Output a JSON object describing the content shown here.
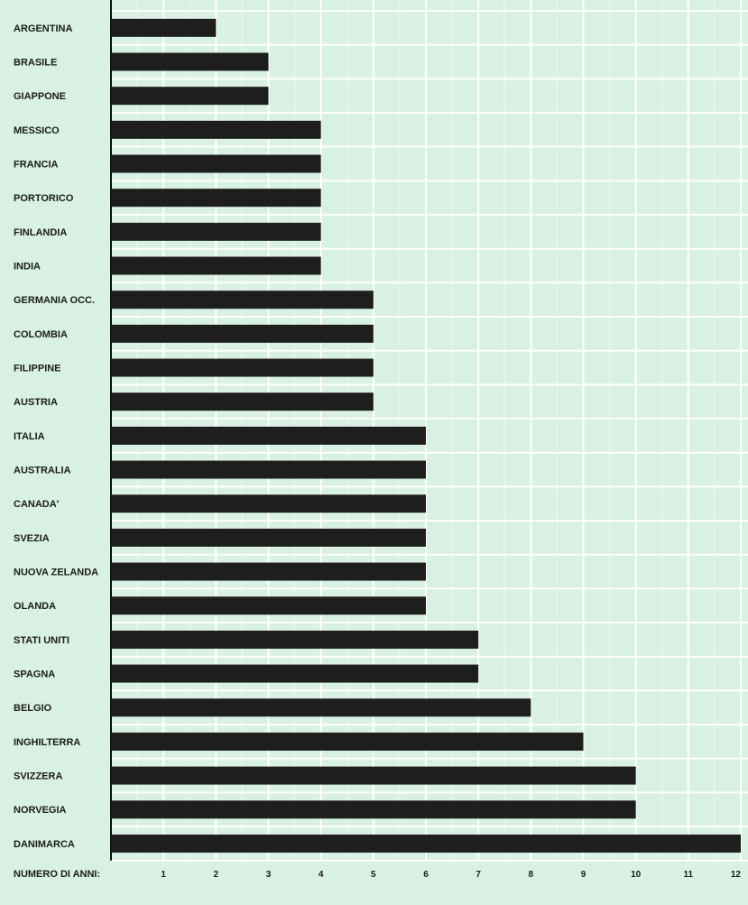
{
  "chart_data": {
    "type": "bar",
    "orientation": "horizontal",
    "xlabel": "NUMERO DI ANNI:",
    "xlim": [
      0,
      12
    ],
    "x_ticks": [
      1,
      2,
      3,
      4,
      5,
      6,
      7,
      8,
      9,
      10,
      11,
      12
    ],
    "grid": true,
    "colors": {
      "background": "#d8f1e2",
      "grid": "#ffffff",
      "bar": "#1e1e1e",
      "axis": "#111111"
    },
    "categories": [
      "ARGENTINA",
      "BRASILE",
      "GIAPPONE",
      "MESSICO",
      "FRANCIA",
      "PORTORICO",
      "FINLANDIA",
      "INDIA",
      "GERMANIA OCC.",
      "COLOMBIA",
      "FILIPPINE",
      "AUSTRIA",
      "ITALIA",
      "AUSTRALIA",
      "CANADA'",
      "SVEZIA",
      "NUOVA ZELANDA",
      "OLANDA",
      "STATI UNITI",
      "SPAGNA",
      "BELGIO",
      "INGHILTERRA",
      "SVIZZERA",
      "NORVEGIA",
      "DANIMARCA"
    ],
    "values": [
      2,
      3,
      3,
      4,
      4,
      4,
      4,
      4,
      5,
      5,
      5,
      5,
      6,
      6,
      6,
      6,
      6,
      6,
      7,
      7,
      8,
      9,
      10,
      10,
      12
    ]
  }
}
